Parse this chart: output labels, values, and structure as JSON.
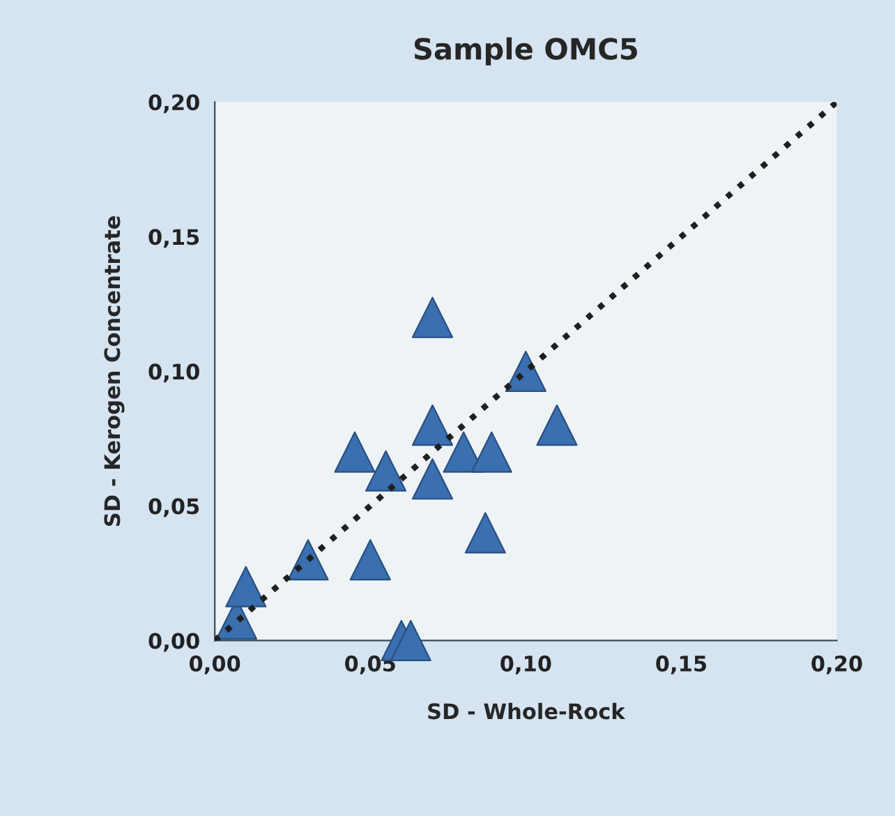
{
  "chart_data": {
    "type": "scatter",
    "title": "Sample OMC5",
    "xlabel": "SD - Whole-Rock",
    "ylabel": "SD - Kerogen Concentrate",
    "xlim": [
      0,
      0.2
    ],
    "ylim": [
      0,
      0.2
    ],
    "xticks": [
      {
        "value": 0,
        "label": "0,00"
      },
      {
        "value": 0.05,
        "label": "0,05"
      },
      {
        "value": 0.1,
        "label": "0,10"
      },
      {
        "value": 0.15,
        "label": "0,15"
      },
      {
        "value": 0.2,
        "label": "0,20"
      }
    ],
    "yticks": [
      {
        "value": 0,
        "label": "0,00"
      },
      {
        "value": 0.05,
        "label": "0,05"
      },
      {
        "value": 0.1,
        "label": "0,10"
      },
      {
        "value": 0.15,
        "label": "0,15"
      },
      {
        "value": 0.2,
        "label": "0,20"
      }
    ],
    "grid": false,
    "legend": false,
    "marker": "triangle",
    "series": [
      {
        "color": "#3a6fb0",
        "x": [
          0.007,
          0.01,
          0.03,
          0.045,
          0.05,
          0.055,
          0.06,
          0.063,
          0.07,
          0.07,
          0.07,
          0.08,
          0.089,
          0.087,
          0.1,
          0.11
        ],
        "values": [
          0.008,
          0.02,
          0.03,
          0.07,
          0.03,
          0.063,
          0.0,
          0.0,
          0.12,
          0.08,
          0.06,
          0.07,
          0.07,
          0.04,
          0.1,
          0.08
        ]
      },
      {
        "type": "line",
        "color": "#1f1f1f",
        "line_style": "dotted",
        "marker": "none",
        "x": [
          0,
          0.2
        ],
        "values": [
          0,
          0.2
        ]
      }
    ]
  }
}
